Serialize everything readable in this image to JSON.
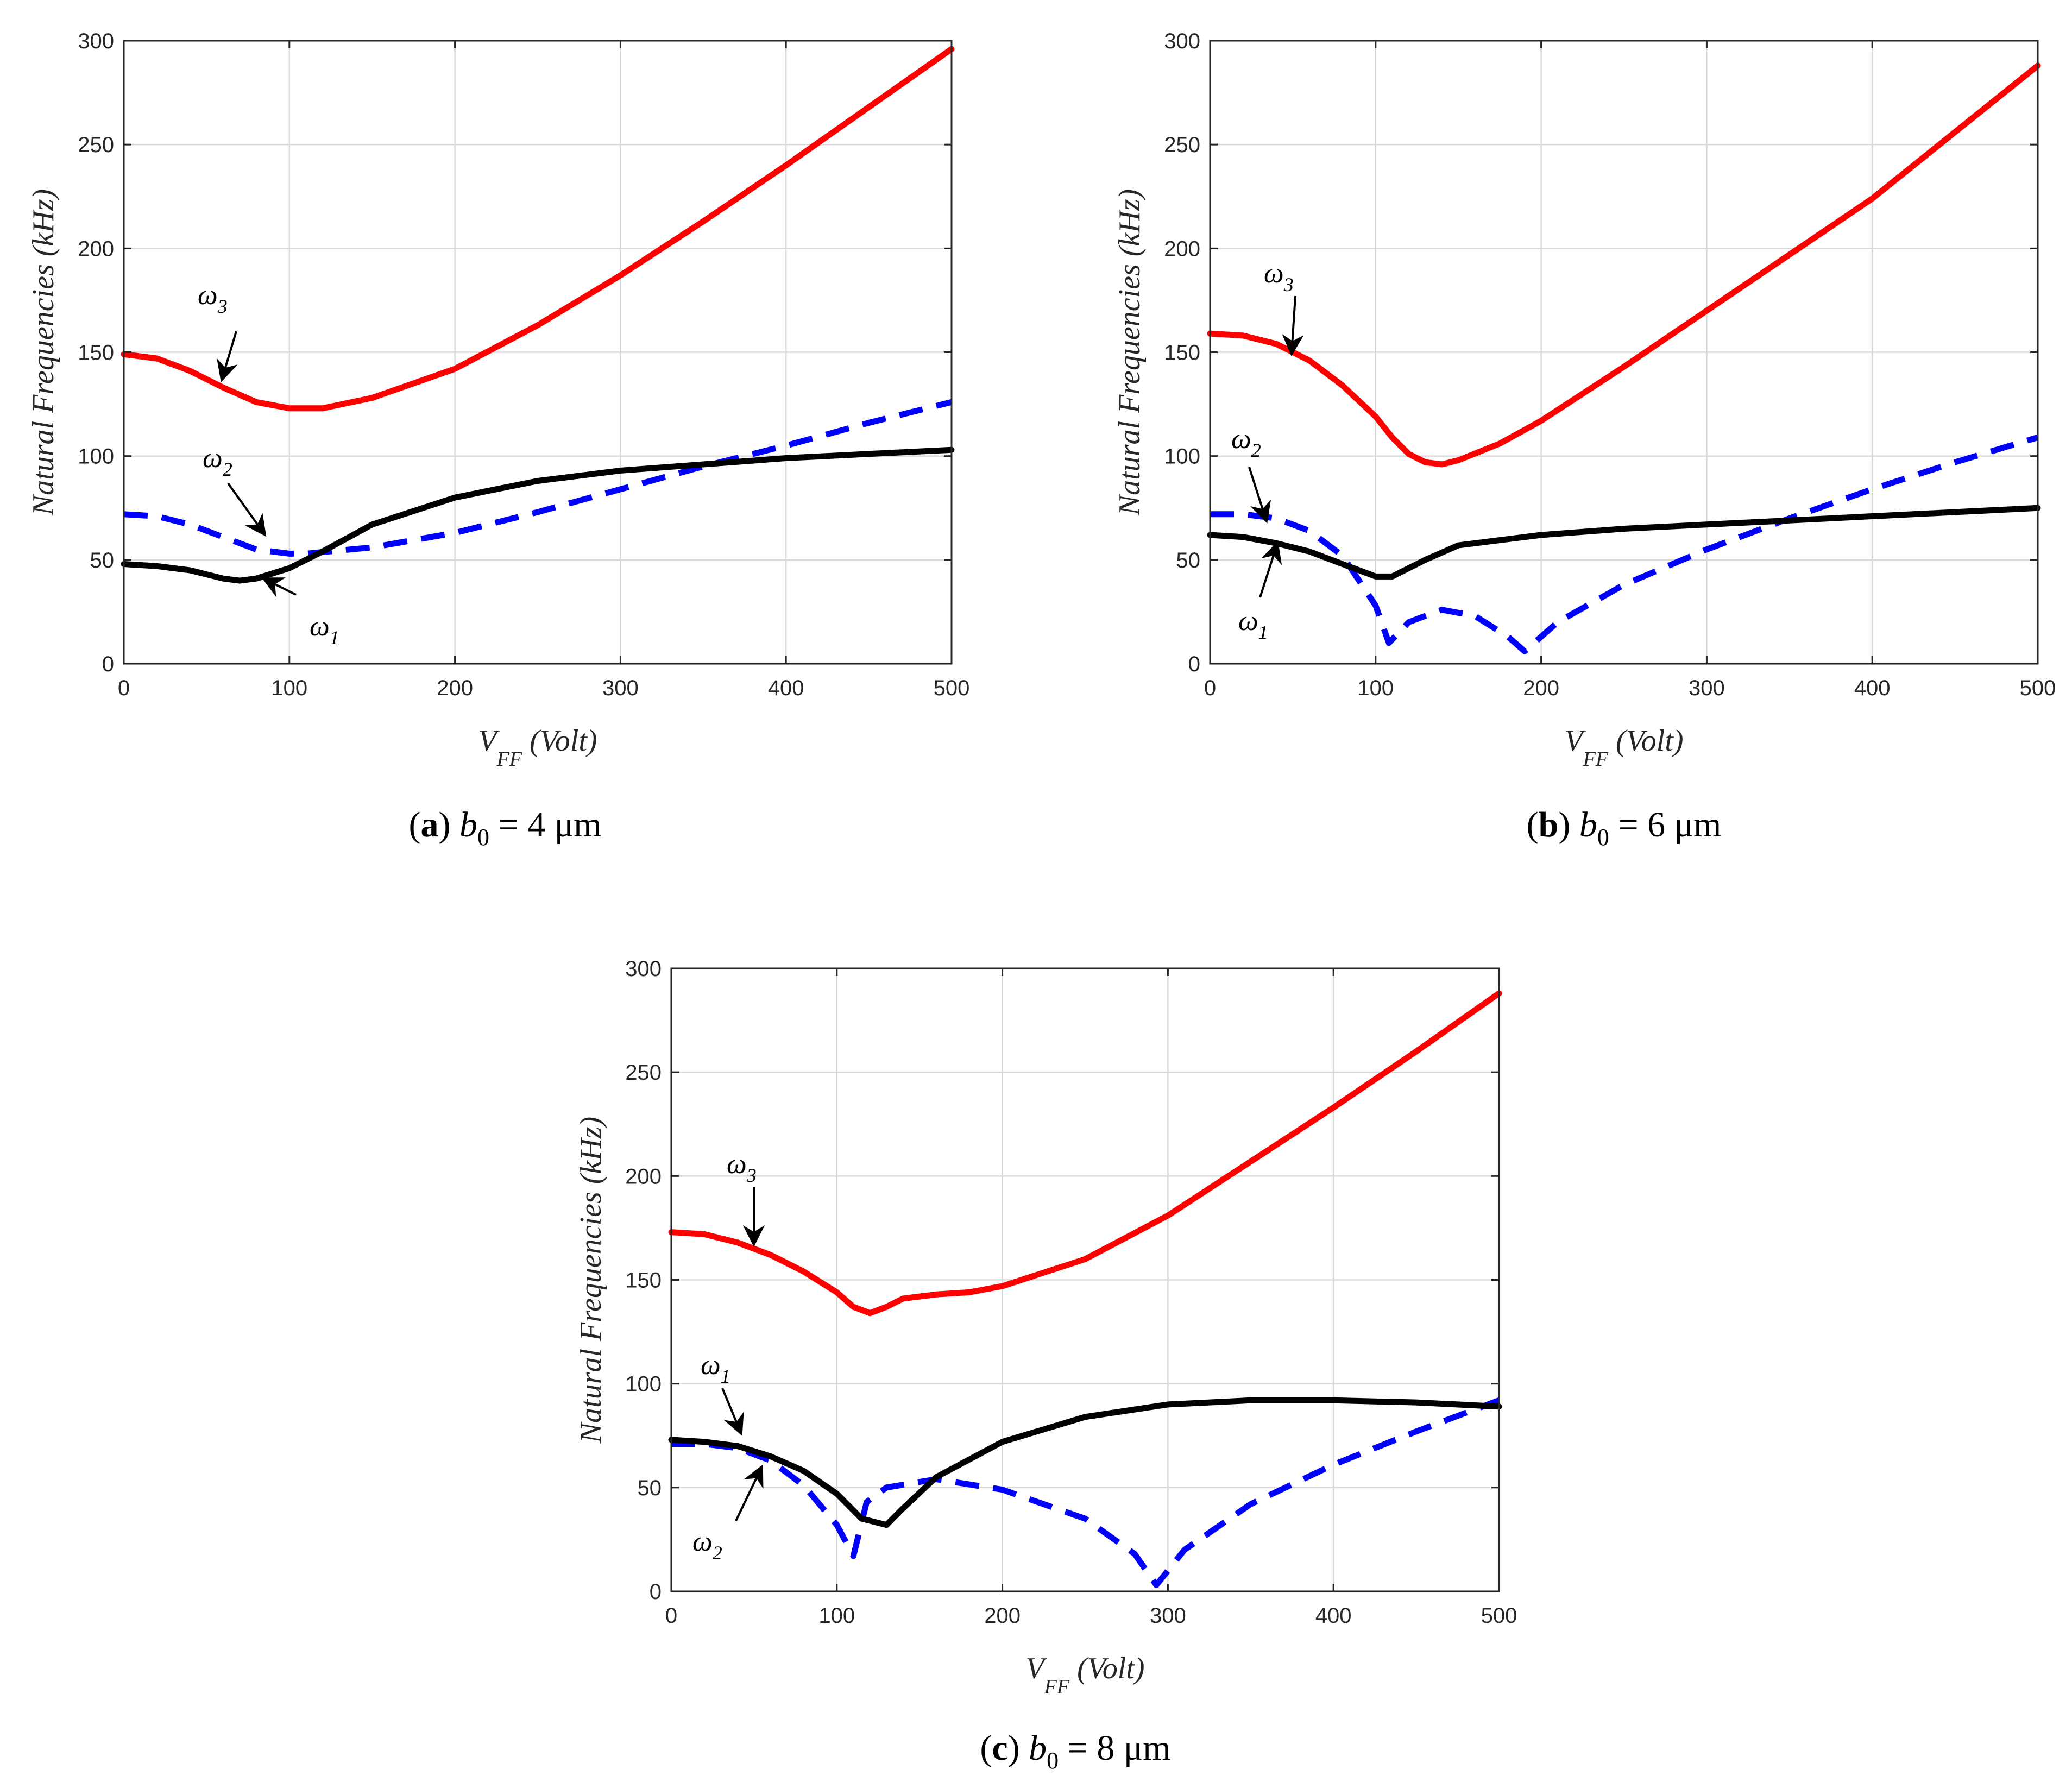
{
  "figure": {
    "panels": [
      {
        "id": "a",
        "caption": {
          "label": "a",
          "symbol": "b",
          "subscript": "0",
          "value": "= 4 μm"
        }
      },
      {
        "id": "b",
        "caption": {
          "label": "b",
          "symbol": "b",
          "subscript": "0",
          "value": "= 6 μm"
        }
      },
      {
        "id": "c",
        "caption": {
          "label": "c",
          "symbol": "b",
          "subscript": "0",
          "value": "= 8 μm"
        }
      }
    ]
  },
  "chart_data": [
    {
      "type": "line",
      "panel": "a",
      "xlabel": {
        "main": "V",
        "sub": "FF",
        "unit": "(Volt)"
      },
      "ylabel": "Natural Frequencies (kHz)",
      "xlim": [
        0,
        500
      ],
      "ylim": [
        0,
        300
      ],
      "xticks": [
        0,
        100,
        200,
        300,
        400,
        500
      ],
      "yticks": [
        0,
        50,
        100,
        150,
        200,
        250,
        300
      ],
      "grid": true,
      "series": [
        {
          "name": "ω3",
          "color": "#ff0000",
          "style": "solid",
          "x": [
            0,
            20,
            40,
            60,
            80,
            100,
            120,
            150,
            200,
            250,
            300,
            350,
            400,
            450,
            500
          ],
          "y": [
            149,
            147,
            141,
            133,
            126,
            123,
            123,
            128,
            142,
            163,
            187,
            213,
            240,
            268,
            296
          ]
        },
        {
          "name": "ω2",
          "color": "#0000ff",
          "style": "dashed",
          "x": [
            0,
            20,
            40,
            60,
            80,
            100,
            110,
            150,
            200,
            250,
            300,
            350,
            400,
            450,
            500
          ],
          "y": [
            72,
            71,
            67,
            61,
            55,
            53,
            53,
            56,
            63,
            73,
            84,
            95,
            105,
            116,
            126
          ]
        },
        {
          "name": "ω1",
          "color": "#000000",
          "style": "solid",
          "x": [
            0,
            20,
            40,
            60,
            70,
            80,
            100,
            120,
            150,
            200,
            250,
            300,
            350,
            400,
            450,
            500
          ],
          "y": [
            48,
            47,
            45,
            41,
            40,
            41,
            46,
            54,
            67,
            80,
            88,
            93,
            96,
            99,
            101,
            103
          ]
        }
      ],
      "annotations": [
        {
          "label": "ω",
          "sub": "3"
        },
        {
          "label": "ω",
          "sub": "2"
        },
        {
          "label": "ω",
          "sub": "1"
        }
      ]
    },
    {
      "type": "line",
      "panel": "b",
      "xlabel": {
        "main": "V",
        "sub": "FF",
        "unit": "(Volt)"
      },
      "ylabel": "Natural Frequencies (kHz)",
      "xlim": [
        0,
        500
      ],
      "ylim": [
        0,
        300
      ],
      "xticks": [
        0,
        100,
        200,
        300,
        400,
        500
      ],
      "yticks": [
        0,
        50,
        100,
        150,
        200,
        250,
        300
      ],
      "grid": true,
      "series": [
        {
          "name": "ω3",
          "color": "#ff0000",
          "style": "solid",
          "x": [
            0,
            20,
            40,
            60,
            80,
            100,
            110,
            120,
            130,
            140,
            150,
            175,
            200,
            250,
            300,
            350,
            400,
            450,
            500
          ],
          "y": [
            159,
            158,
            154,
            146,
            134,
            119,
            109,
            101,
            97,
            96,
            98,
            106,
            117,
            143,
            170,
            197,
            224,
            256,
            288
          ]
        },
        {
          "name": "ω2",
          "color": "#0000ff",
          "style": "dashed",
          "x": [
            0,
            20,
            40,
            60,
            80,
            100,
            108,
            120,
            140,
            160,
            180,
            190,
            210,
            250,
            300,
            350,
            400,
            450,
            500
          ],
          "y": [
            72,
            72,
            70,
            64,
            52,
            28,
            10,
            20,
            26,
            23,
            13,
            6,
            20,
            38,
            55,
            70,
            84,
            97,
            109
          ]
        },
        {
          "name": "ω1",
          "color": "#000000",
          "style": "solid",
          "x": [
            0,
            20,
            40,
            60,
            80,
            100,
            110,
            130,
            150,
            200,
            250,
            300,
            350,
            400,
            450,
            500
          ],
          "y": [
            62,
            61,
            58,
            54,
            48,
            42,
            42,
            50,
            57,
            62,
            65,
            67,
            69,
            71,
            73,
            75
          ]
        }
      ],
      "annotations": [
        {
          "label": "ω",
          "sub": "3"
        },
        {
          "label": "ω",
          "sub": "2"
        },
        {
          "label": "ω",
          "sub": "1"
        }
      ]
    },
    {
      "type": "line",
      "panel": "c",
      "xlabel": {
        "main": "V",
        "sub": "FF",
        "unit": "(Volt)"
      },
      "ylabel": "Natural Frequencies (kHz)",
      "xlim": [
        0,
        500
      ],
      "ylim": [
        0,
        300
      ],
      "xticks": [
        0,
        100,
        200,
        300,
        400,
        500
      ],
      "yticks": [
        0,
        50,
        100,
        150,
        200,
        250,
        300
      ],
      "grid": true,
      "series": [
        {
          "name": "ω3",
          "color": "#ff0000",
          "style": "solid",
          "x": [
            0,
            20,
            40,
            60,
            80,
            100,
            110,
            120,
            130,
            140,
            160,
            180,
            200,
            250,
            300,
            350,
            400,
            450,
            500
          ],
          "y": [
            173,
            172,
            168,
            162,
            154,
            144,
            137,
            134,
            137,
            141,
            143,
            144,
            147,
            160,
            181,
            207,
            233,
            260,
            288
          ]
        },
        {
          "name": "ω2",
          "color": "#0000ff",
          "style": "dashed",
          "x": [
            0,
            20,
            40,
            60,
            80,
            100,
            110,
            118,
            130,
            160,
            200,
            250,
            280,
            293,
            310,
            350,
            400,
            450,
            500
          ],
          "y": [
            71,
            71,
            69,
            63,
            51,
            32,
            17,
            43,
            50,
            54,
            49,
            35,
            18,
            3,
            20,
            42,
            61,
            77,
            92
          ]
        },
        {
          "name": "ω1",
          "color": "#000000",
          "style": "solid",
          "x": [
            0,
            20,
            40,
            60,
            80,
            100,
            115,
            130,
            140,
            160,
            200,
            250,
            300,
            350,
            400,
            450,
            500
          ],
          "y": [
            73,
            72,
            70,
            65,
            58,
            47,
            35,
            32,
            40,
            55,
            72,
            84,
            90,
            92,
            92,
            91,
            89
          ]
        }
      ],
      "annotations": [
        {
          "label": "ω",
          "sub": "3"
        },
        {
          "label": "ω",
          "sub": "1"
        },
        {
          "label": "ω",
          "sub": "2"
        }
      ]
    }
  ]
}
